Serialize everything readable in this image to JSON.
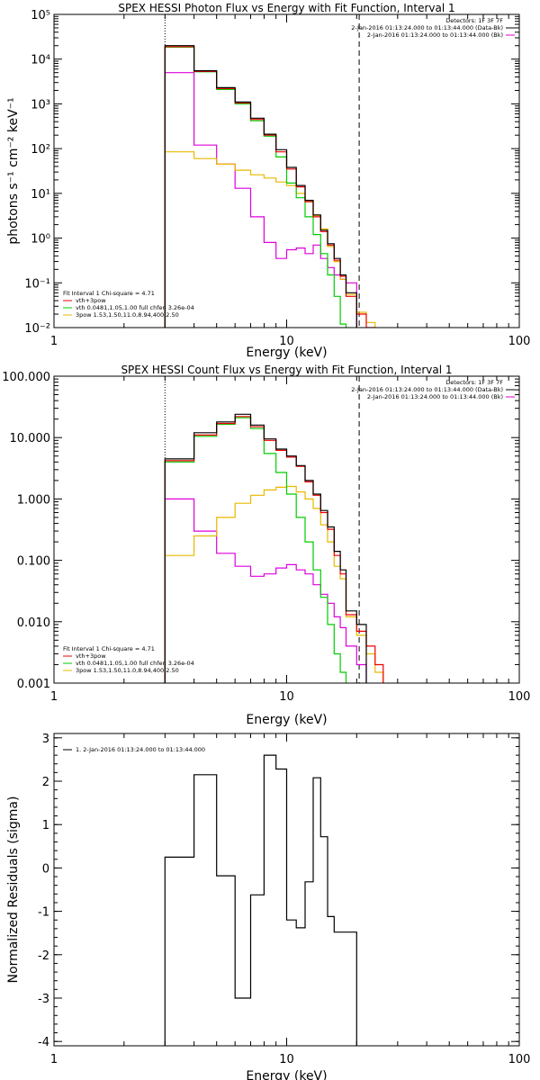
{
  "chart_data": [
    {
      "type": "line",
      "title": "SPEX HESSI Photon Flux vs Energy with Fit Function, Interval 1",
      "xlabel": "Energy (keV)",
      "ylabel": "photons s⁻¹ cm⁻² keV⁻¹",
      "xscale": "log",
      "yscale": "log",
      "xlim": [
        1,
        100
      ],
      "ylim": [
        0.01,
        100000
      ],
      "x_ticks": [
        "1",
        "10",
        "100"
      ],
      "y_ticks": [
        "10⁻²",
        "10⁻¹",
        "10⁰",
        "10¹",
        "10²",
        "10³",
        "10⁴",
        "10⁵"
      ],
      "vlines": [
        {
          "x": 3,
          "style": "dotted"
        },
        {
          "x": 20.5,
          "style": "dashed"
        }
      ],
      "info": [
        "Detectors: 1F 3F 7F",
        "2-Jan-2016 01:13:24.000 to 01:13:44.000 (Data-Bk)",
        "2-Jan-2016 01:13:24.000 to 01:13:44.000 (Bk)"
      ],
      "info_colors": [
        "#000000",
        "#dd00dd"
      ],
      "legend": {
        "header": "Fit Interval 1   Chi-square = 4.71",
        "items": [
          {
            "label": "vth+3pow",
            "color": "#ee0000"
          },
          {
            "label": "vth 0.0481,1.05,1.00  full chfen 3.26e-04",
            "color": "#00cc00"
          },
          {
            "label": "3pow 1.53,1.50,11.0,8.94,400,2.50",
            "color": "#e8b800"
          }
        ]
      },
      "bin_edges": [
        3,
        3.5,
        4,
        5,
        6,
        7,
        8,
        9,
        10,
        11,
        12,
        13,
        14,
        15,
        16,
        17,
        18,
        20,
        22,
        24,
        26
      ],
      "series": [
        {
          "name": "Data-Bk",
          "color": "#000000",
          "values": [
            20000,
            20000,
            5500,
            2300,
            1100,
            480,
            210,
            95,
            38,
            15,
            7,
            3.3,
            1.5,
            0.75,
            0.35,
            0.15,
            0.06,
            null,
            null,
            null
          ]
        },
        {
          "name": "vth+3pow",
          "color": "#ee0000",
          "values": [
            19000,
            19000,
            5300,
            2200,
            1050,
            450,
            200,
            85,
            35,
            14,
            6.5,
            3.0,
            1.4,
            0.7,
            0.32,
            0.14,
            0.05,
            0.02,
            0.01,
            null
          ]
        },
        {
          "name": "vth",
          "color": "#00cc00",
          "values": [
            18500,
            18500,
            5200,
            2100,
            1000,
            420,
            190,
            65,
            17,
            8,
            3.0,
            1.2,
            0.45,
            0.15,
            0.05,
            0.012,
            null,
            null,
            null,
            null
          ]
        },
        {
          "name": "3pow",
          "color": "#e8b800",
          "values": [
            85,
            85,
            60,
            45,
            33,
            26,
            22,
            18,
            15,
            10,
            6.8,
            3.2,
            1.6,
            0.65,
            0.3,
            0.12,
            0.055,
            0.022,
            0.013,
            null
          ]
        },
        {
          "name": "Bk",
          "color": "#dd00dd",
          "values": [
            5000,
            5000,
            120,
            45,
            13,
            3.0,
            0.8,
            0.35,
            0.55,
            0.6,
            0.45,
            0.7,
            0.35,
            0.22,
            0.15,
            0.12,
            0.1,
            null,
            null,
            null
          ]
        }
      ]
    },
    {
      "type": "line",
      "title": "SPEX HESSI Count Flux vs Energy with Fit Function, Interval 1",
      "xlabel": "Energy (keV)",
      "ylabel": "",
      "xscale": "log",
      "yscale": "log",
      "xlim": [
        1,
        100
      ],
      "ylim": [
        0.001,
        100
      ],
      "x_ticks": [
        "1",
        "10",
        "100"
      ],
      "y_ticks": [
        "0.001",
        "0.010",
        "0.100",
        "1.000",
        "10.000",
        "100.000"
      ],
      "vlines": [
        {
          "x": 3,
          "style": "dotted"
        },
        {
          "x": 20.5,
          "style": "dashed"
        }
      ],
      "info": [
        "Detectors: 1F 3F 7F",
        "2-Jan-2016 01:13:24.000 to 01:13:44.000 (Data-Bk)",
        "2-Jan-2016 01:13:24.000 to 01:13:44.000 (Bk)"
      ],
      "info_colors": [
        "#000000",
        "#dd00dd"
      ],
      "legend": {
        "header": "Fit Interval 1   Chi-square = 4.71",
        "items": [
          {
            "label": "vth+3pow",
            "color": "#ee0000"
          },
          {
            "label": "vth 0.0481,1.05,1.00  full chfen 3.26e-04",
            "color": "#00cc00"
          },
          {
            "label": "3pow 1.53,1.50,11.0,8.94,400,2.50",
            "color": "#e8b800"
          }
        ]
      },
      "bin_edges": [
        3,
        3.5,
        4,
        5,
        6,
        7,
        8,
        9,
        10,
        11,
        12,
        13,
        14,
        15,
        16,
        17,
        18,
        20,
        22,
        24,
        26
      ],
      "series": [
        {
          "name": "Data-Bk",
          "color": "#000000",
          "values": [
            4.5,
            4.5,
            12,
            18,
            24,
            16,
            9.5,
            6.5,
            5.0,
            3.5,
            2.0,
            1.2,
            0.65,
            0.35,
            0.14,
            0.07,
            0.015,
            0.009,
            null,
            null
          ]
        },
        {
          "name": "vth+3pow",
          "color": "#ee0000",
          "values": [
            4.2,
            4.2,
            11,
            17,
            22,
            15,
            9,
            6.2,
            4.8,
            3.4,
            1.9,
            1.15,
            0.6,
            0.32,
            0.12,
            0.06,
            0.013,
            0.007,
            0.004,
            0.002
          ]
        },
        {
          "name": "vth",
          "color": "#00cc00",
          "values": [
            4.0,
            4.0,
            10.5,
            16.5,
            21,
            14,
            5.5,
            2.7,
            1.2,
            0.5,
            0.2,
            0.07,
            0.025,
            0.009,
            0.003,
            0.0015,
            null,
            null,
            null,
            null
          ]
        },
        {
          "name": "3pow",
          "color": "#e8b800",
          "values": [
            0.12,
            0.12,
            0.25,
            0.5,
            0.85,
            1.15,
            1.4,
            1.55,
            1.6,
            1.3,
            1.0,
            0.7,
            0.38,
            0.2,
            0.08,
            0.05,
            0.012,
            0.006,
            0.003,
            0.0015
          ]
        },
        {
          "name": "Bk",
          "color": "#dd00dd",
          "values": [
            1.0,
            1.0,
            0.3,
            0.13,
            0.08,
            0.055,
            0.06,
            0.075,
            0.085,
            0.07,
            0.06,
            0.04,
            0.028,
            0.02,
            0.012,
            0.008,
            0.004,
            0.002,
            null,
            null
          ]
        }
      ]
    },
    {
      "type": "line",
      "title": "",
      "xlabel": "Energy (keV)",
      "ylabel": "Normalized Residuals (sigma)",
      "xscale": "log",
      "yscale": "linear",
      "xlim": [
        1,
        100
      ],
      "ylim": [
        -4.1,
        3.1
      ],
      "x_ticks": [
        "1",
        "10",
        "100"
      ],
      "y_ticks": [
        "-4",
        "-3",
        "-2",
        "-1",
        "0",
        "1",
        "2",
        "3"
      ],
      "legend": {
        "items": [
          {
            "label": "1.  2-Jan-2016 01:13:24.000 to 01:13:44.000",
            "color": "#000000"
          }
        ]
      },
      "bin_edges": [
        3,
        3.5,
        4,
        5,
        6,
        7,
        8,
        9,
        10,
        11,
        12,
        13,
        14,
        15,
        16,
        17,
        18,
        20
      ],
      "series": [
        {
          "name": "1.  2-Jan-2016 01:13:24.000 to 01:13:44.000",
          "color": "#000000",
          "values": [
            0.25,
            0.25,
            2.15,
            -0.18,
            -3.0,
            -0.62,
            2.6,
            2.28,
            -1.2,
            -1.38,
            -0.32,
            2.08,
            0.72,
            -1.12,
            -1.48,
            -1.48,
            -1.48
          ]
        }
      ]
    }
  ]
}
